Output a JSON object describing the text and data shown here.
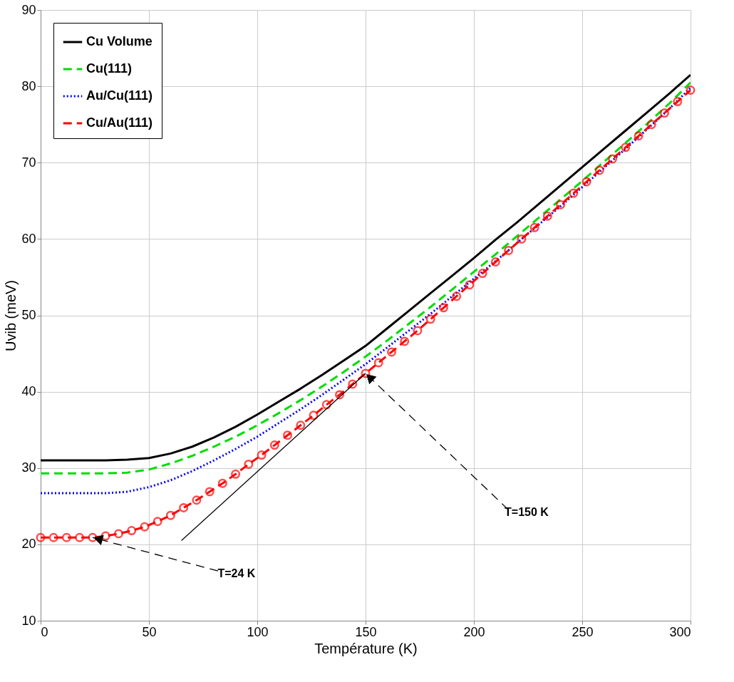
{
  "chart_data": {
    "type": "line",
    "xlabel": "Température (K)",
    "ylabel": "Uvib (meV)",
    "xlim": [
      0,
      300
    ],
    "xticks": [
      0,
      50,
      100,
      150,
      200,
      250,
      300
    ],
    "ylim": [
      10,
      90
    ],
    "yticks": [
      10,
      20,
      30,
      40,
      50,
      60,
      70,
      80,
      90
    ],
    "grid": true,
    "legend": "top left",
    "series": [
      {
        "name": "Cu Volume",
        "color": "#000000",
        "line_style": "solid",
        "x": [
          0,
          10,
          20,
          30,
          40,
          50,
          60,
          70,
          80,
          90,
          100,
          110,
          120,
          130,
          140,
          150,
          160,
          170,
          180,
          190,
          200,
          210,
          220,
          230,
          240,
          250,
          260,
          270,
          280,
          290,
          300
        ],
        "values": [
          31,
          31,
          31,
          31,
          31.1,
          31.3,
          31.9,
          32.8,
          34.0,
          35.4,
          37.0,
          38.7,
          40.4,
          42.2,
          44.1,
          46.0,
          48.3,
          50.6,
          52.9,
          55.2,
          57.5,
          59.9,
          62.2,
          64.6,
          67.0,
          69.4,
          71.8,
          74.2,
          76.6,
          79.0,
          81.5
        ]
      },
      {
        "name": "Cu(111)",
        "color": "#00dd00",
        "line_style": "dashed",
        "x": [
          0,
          10,
          20,
          30,
          40,
          50,
          60,
          70,
          80,
          90,
          100,
          110,
          120,
          130,
          140,
          150,
          160,
          170,
          180,
          190,
          200,
          210,
          220,
          230,
          240,
          250,
          260,
          270,
          280,
          290,
          300
        ],
        "values": [
          29.3,
          29.3,
          29.3,
          29.3,
          29.4,
          29.8,
          30.6,
          31.6,
          32.8,
          34.1,
          35.6,
          37.2,
          38.9,
          40.7,
          42.6,
          44.6,
          46.7,
          48.9,
          51.1,
          53.4,
          55.7,
          58.0,
          60.4,
          62.8,
          65.2,
          67.6,
          70.1,
          72.6,
          75.1,
          77.7,
          80.5
        ]
      },
      {
        "name": "Au/Cu(111)",
        "color": "#0000ff",
        "line_style": "dotted",
        "x": [
          0,
          10,
          20,
          30,
          40,
          50,
          60,
          70,
          80,
          90,
          100,
          110,
          120,
          130,
          140,
          150,
          160,
          170,
          180,
          190,
          200,
          210,
          220,
          230,
          240,
          250,
          260,
          270,
          280,
          290,
          300
        ],
        "values": [
          26.7,
          26.7,
          26.7,
          26.7,
          26.9,
          27.5,
          28.4,
          29.6,
          31.0,
          32.5,
          34.1,
          35.9,
          37.7,
          39.6,
          41.6,
          43.6,
          45.8,
          48.0,
          50.2,
          52.5,
          54.8,
          57.1,
          59.5,
          61.9,
          64.3,
          66.8,
          69.3,
          71.8,
          74.4,
          77.0,
          79.8
        ]
      },
      {
        "name": "Cu/Au(111)",
        "color": "#ff0000",
        "line_style": "dashed",
        "marker": "circle",
        "x": [
          0,
          6,
          12,
          18,
          24,
          30,
          36,
          42,
          48,
          54,
          60,
          66,
          72,
          78,
          84,
          90,
          96,
          102,
          108,
          114,
          120,
          126,
          132,
          138,
          144,
          150,
          156,
          162,
          168,
          174,
          180,
          186,
          192,
          198,
          204,
          210,
          216,
          222,
          228,
          234,
          240,
          246,
          252,
          258,
          264,
          270,
          276,
          282,
          288,
          294,
          300
        ],
        "values": [
          20.9,
          20.9,
          20.9,
          20.9,
          20.9,
          21.1,
          21.4,
          21.8,
          22.3,
          23.0,
          23.8,
          24.8,
          25.8,
          26.9,
          28.0,
          29.2,
          30.5,
          31.7,
          33.0,
          34.3,
          35.6,
          36.9,
          38.3,
          39.6,
          41.0,
          42.4,
          43.8,
          45.2,
          46.6,
          48.0,
          49.5,
          51.0,
          52.5,
          54.0,
          55.5,
          57.0,
          58.5,
          60.0,
          61.5,
          63.0,
          64.5,
          66.0,
          67.5,
          69.0,
          70.5,
          72.0,
          73.5,
          75.0,
          76.5,
          78.0,
          79.5
        ]
      },
      {
        "color": "#000000",
        "line_style": "solid",
        "x": [
          65,
          150
        ],
        "values": [
          20.5,
          42.4
        ]
      }
    ],
    "annotations": [
      {
        "text": "T=150 K",
        "x": 150,
        "y": 42.4
      },
      {
        "text": "T=24 K",
        "x": 24,
        "y": 20.9
      }
    ]
  }
}
